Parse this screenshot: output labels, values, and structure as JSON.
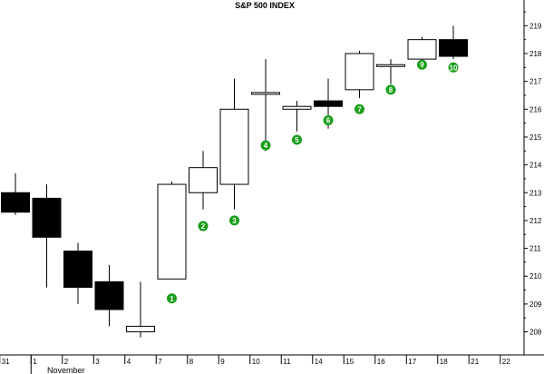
{
  "chart_data": {
    "type": "candlestick",
    "title": "S&P 500 INDEX",
    "ylim": [
      207.3,
      219.5
    ],
    "y_ticks": [
      208,
      209,
      210,
      211,
      212,
      213,
      214,
      215,
      216,
      217,
      218,
      219
    ],
    "y_tick_labels": [
      "208",
      "209",
      "210",
      "211",
      "212",
      "213",
      "214",
      "215",
      "216",
      "217",
      "218",
      "219"
    ],
    "month_label": "November",
    "grid": false,
    "candles": [
      {
        "date": "31",
        "open": 213.0,
        "high": 213.7,
        "low": 212.2,
        "close": 212.3
      },
      {
        "date": "1",
        "open": 212.8,
        "high": 213.3,
        "low": 209.6,
        "close": 211.4
      },
      {
        "date": "2",
        "open": 210.9,
        "high": 211.2,
        "low": 209.0,
        "close": 209.6
      },
      {
        "date": "3",
        "open": 209.8,
        "high": 210.4,
        "low": 208.2,
        "close": 208.8
      },
      {
        "date": "4",
        "open": 208.0,
        "high": 209.8,
        "low": 207.8,
        "close": 208.2
      },
      {
        "date": "7",
        "open": 209.9,
        "high": 213.4,
        "low": 209.9,
        "close": 213.3
      },
      {
        "date": "8",
        "open": 213.0,
        "high": 214.5,
        "low": 212.4,
        "close": 213.9
      },
      {
        "date": "9",
        "open": 213.3,
        "high": 217.1,
        "low": 212.4,
        "close": 216.0
      },
      {
        "date": "10",
        "open": 216.6,
        "high": 217.8,
        "low": 214.5,
        "close": 216.6
      },
      {
        "date": "11",
        "open": 216.0,
        "high": 216.3,
        "low": 215.2,
        "close": 216.1
      },
      {
        "date": "14",
        "open": 216.3,
        "high": 217.1,
        "low": 215.3,
        "close": 216.1
      },
      {
        "date": "15",
        "open": 216.7,
        "high": 218.1,
        "low": 216.4,
        "close": 218.0
      },
      {
        "date": "16",
        "open": 217.6,
        "high": 217.8,
        "low": 216.9,
        "close": 217.6
      },
      {
        "date": "17",
        "open": 217.8,
        "high": 218.6,
        "low": 217.6,
        "close": 218.5
      },
      {
        "date": "18",
        "open": 218.5,
        "high": 219.0,
        "low": 217.8,
        "close": 217.9
      }
    ],
    "x_axis_extra_labels": [
      "21",
      "22"
    ],
    "annotations": [
      {
        "label": "1",
        "candle": 5,
        "y": 209.2
      },
      {
        "label": "2",
        "candle": 6,
        "y": 211.8
      },
      {
        "label": "3",
        "candle": 7,
        "y": 212.0
      },
      {
        "label": "4",
        "candle": 8,
        "y": 214.7
      },
      {
        "label": "5",
        "candle": 9,
        "y": 214.9
      },
      {
        "label": "6",
        "candle": 10,
        "y": 215.6
      },
      {
        "label": "7",
        "candle": 11,
        "y": 216.0
      },
      {
        "label": "8",
        "candle": 12,
        "y": 216.7
      },
      {
        "label": "9",
        "candle": 13,
        "y": 217.6
      },
      {
        "label": "10",
        "candle": 14,
        "y": 217.5
      }
    ],
    "colors": {
      "up_fill": "#ffffff",
      "down_fill": "#000000",
      "outline": "#000000",
      "badge": "#1a9e1a"
    }
  }
}
